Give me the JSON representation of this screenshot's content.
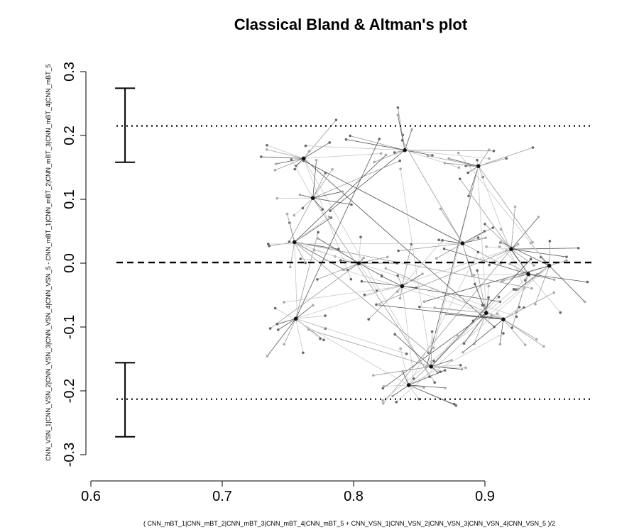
{
  "chart_data": {
    "type": "scatter",
    "title": "Classical Bland & Altman's plot",
    "xlabel": "( CNN_mBT_1|CNN_mBT_2|CNN_mBT_3|CNN_mBT_4|CNN_mBT_5 + CNN_VSN_1|CNN_VSN_2|CNN_VSN_3|CNN_VSN_4|CNN_VSN_5 )/2",
    "ylabel": "CNN_VSN_1|CNN_VSN_2|CNN_VSN_3|CNN_VSN_4|CNN_VSN_5 - CNN_mBT_1|CNN_mBT_2|CNN_mBT_3|CNN_mBT_4|CNN_mBT_5",
    "xlim": [
      0.6,
      0.98
    ],
    "ylim": [
      -0.3,
      0.3
    ],
    "xticks": [
      0.6,
      0.7,
      0.8,
      0.9
    ],
    "xtick_labels": [
      "0.6",
      "0.7",
      "0.8",
      "0.9"
    ],
    "yticks": [
      -0.3,
      -0.2,
      -0.1,
      0.0,
      0.1,
      0.2,
      0.3
    ],
    "ytick_labels": [
      "-0.3",
      "-0.2",
      "-0.1",
      "0.0",
      "0.1",
      "0.2",
      "0.3"
    ],
    "grid": false,
    "reference_lines": {
      "mean_bias": 0.001,
      "upper_loa": 0.215,
      "lower_loa": -0.213
    },
    "confidence_intervals": {
      "x": 0.626,
      "upper": [
        0.158,
        0.274
      ],
      "lower": [
        -0.272,
        -0.156
      ]
    },
    "centroids": [
      {
        "x": 0.762,
        "y": 0.164
      },
      {
        "x": 0.839,
        "y": 0.177
      },
      {
        "x": 0.895,
        "y": 0.152
      },
      {
        "x": 0.769,
        "y": 0.102
      },
      {
        "x": 0.755,
        "y": 0.033
      },
      {
        "x": 0.804,
        "y": 0.0
      },
      {
        "x": 0.883,
        "y": 0.031
      },
      {
        "x": 0.92,
        "y": 0.022
      },
      {
        "x": 0.933,
        "y": -0.017
      },
      {
        "x": 0.949,
        "y": -0.004
      },
      {
        "x": 0.837,
        "y": -0.036
      },
      {
        "x": 0.756,
        "y": -0.087
      },
      {
        "x": 0.901,
        "y": -0.078
      },
      {
        "x": 0.914,
        "y": -0.088
      },
      {
        "x": 0.859,
        "y": -0.162
      },
      {
        "x": 0.842,
        "y": -0.191
      }
    ]
  }
}
